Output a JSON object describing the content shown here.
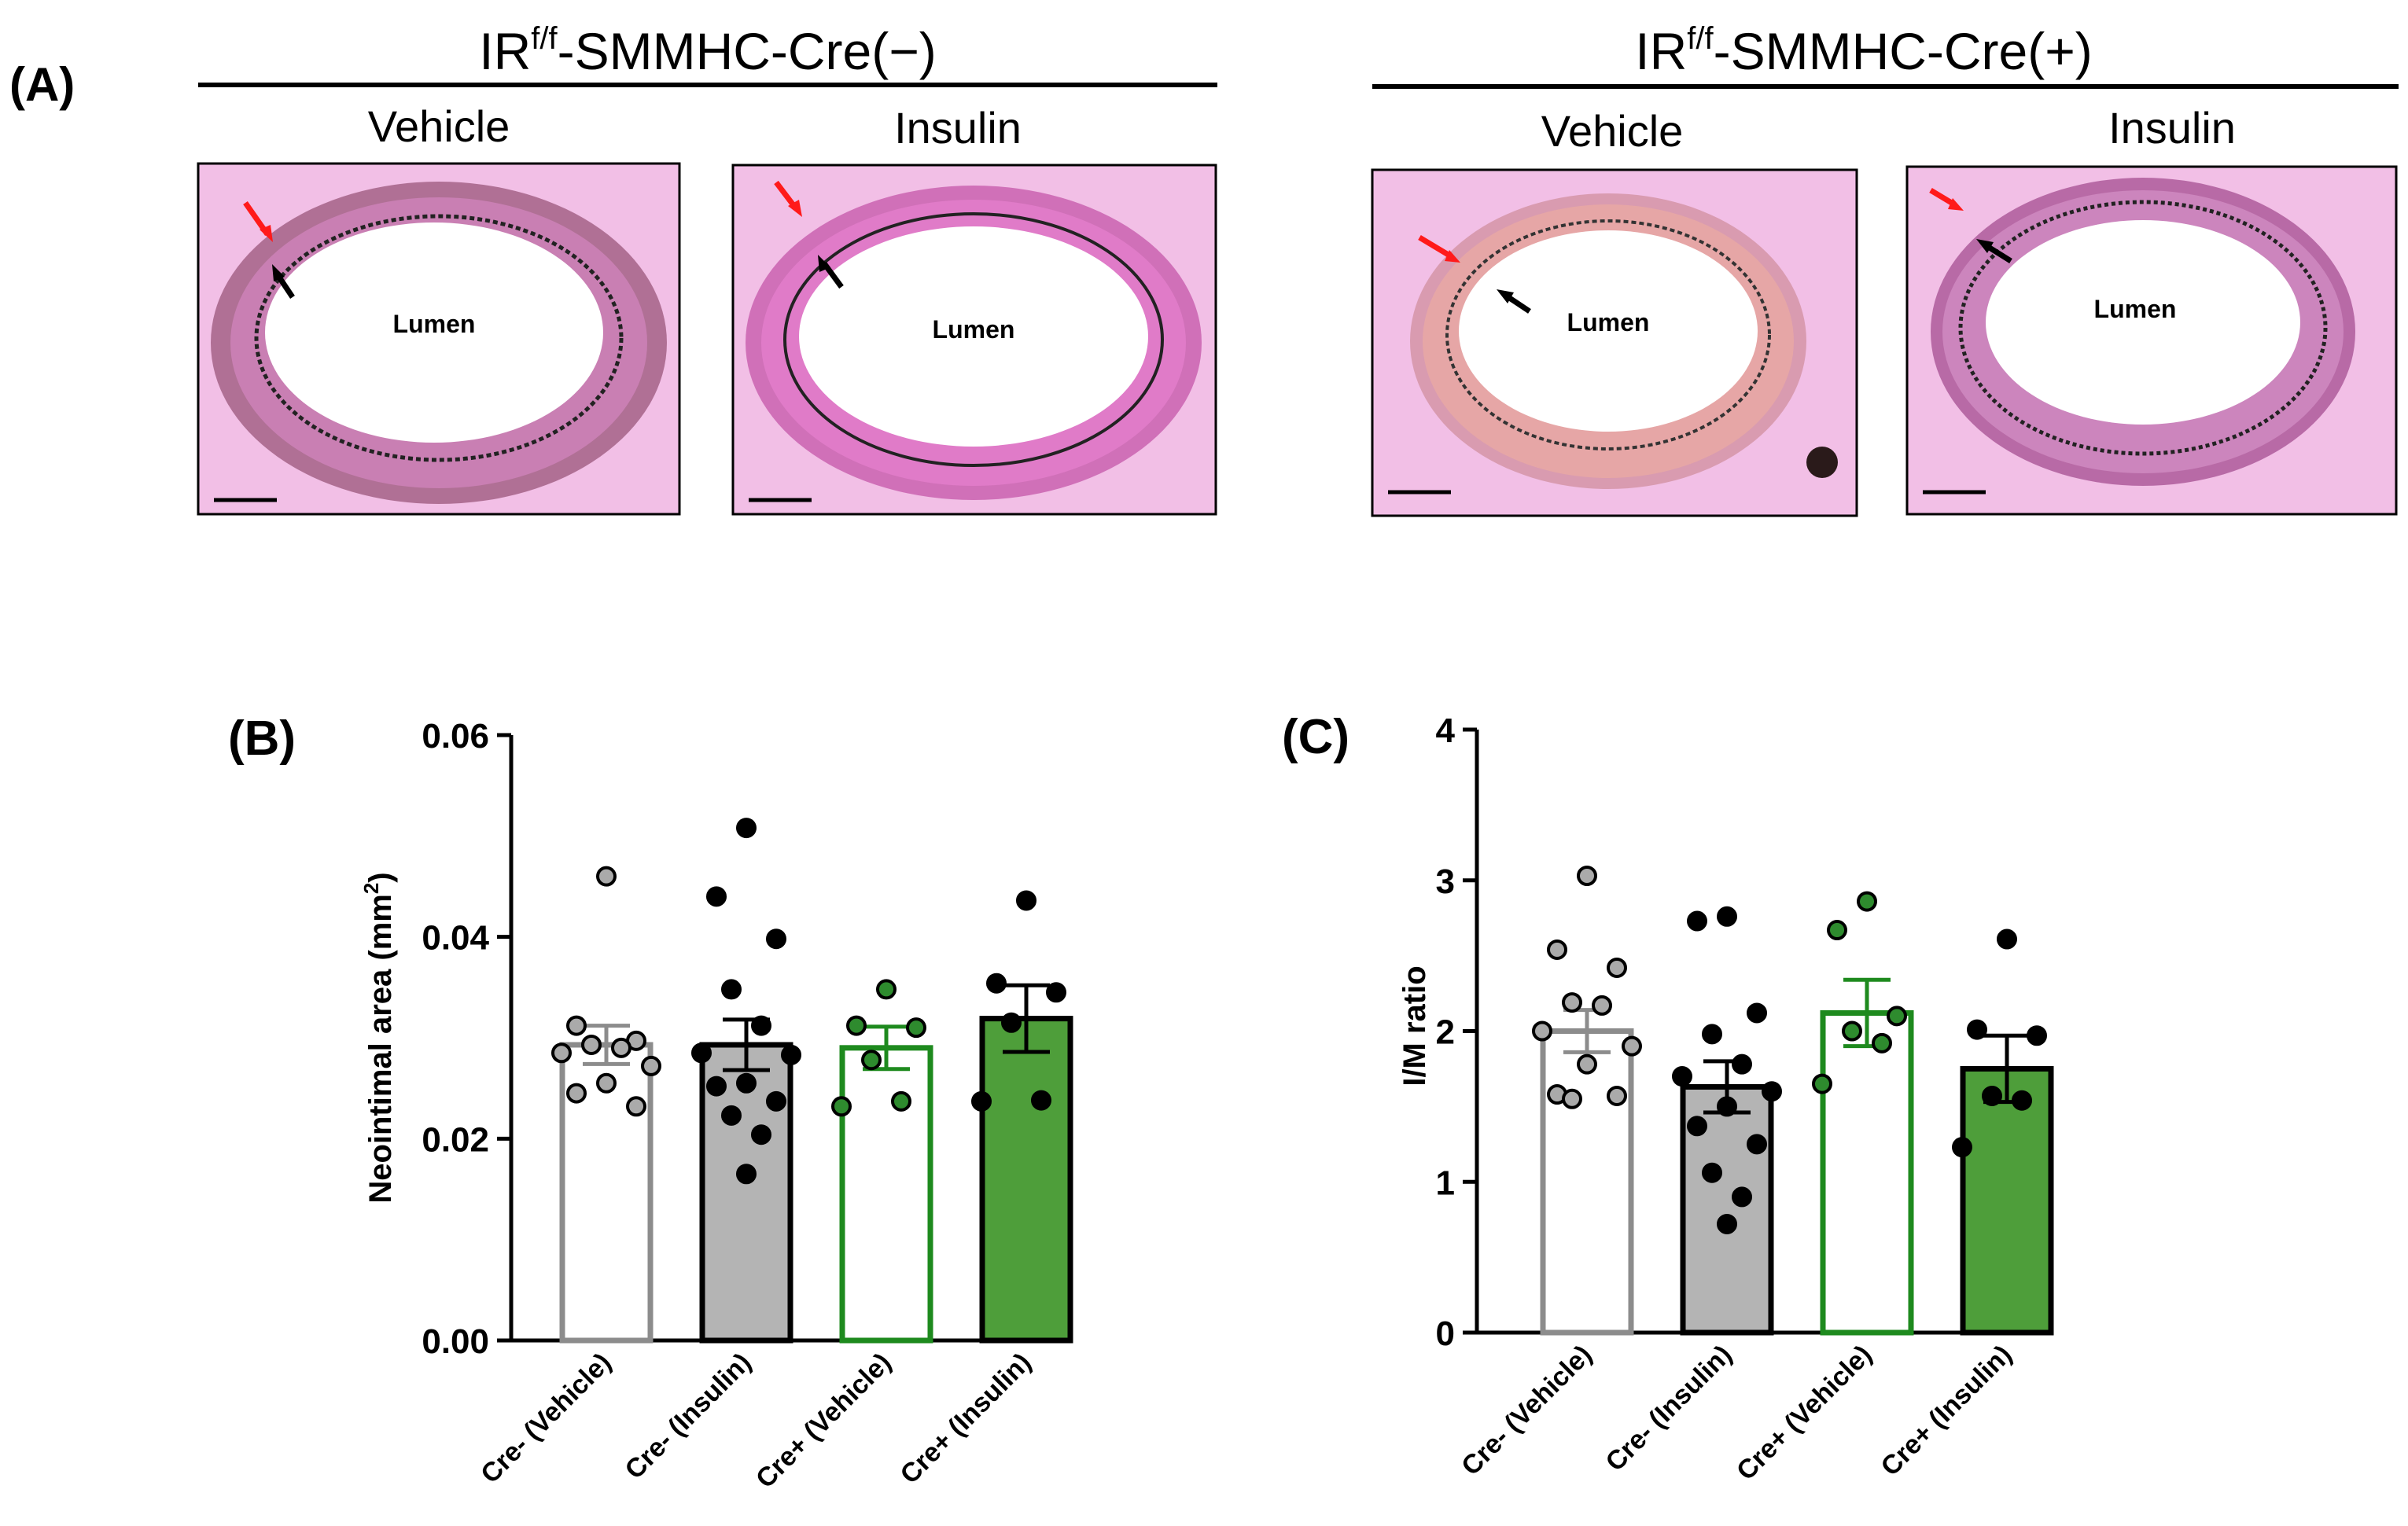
{
  "panel_a": {
    "label": "(A)",
    "groups": [
      {
        "title_prefix": "IR",
        "title_sup": "f/f",
        "title_suffix": "-SMMHC-Cre(−)",
        "images": [
          {
            "label": "Vehicle",
            "lumen_label": "Lumen",
            "media": "#c97fb3",
            "wall": "#b07095"
          },
          {
            "label": "Insulin",
            "lumen_label": "Lumen",
            "media": "#e07bc8",
            "wall": "#d070b8"
          }
        ]
      },
      {
        "title_prefix": "IR",
        "title_sup": "f/f",
        "title_suffix": "-SMMHC-Cre(+)",
        "images": [
          {
            "label": "Vehicle",
            "lumen_label": "Lumen",
            "media": "#e6a6a6",
            "wall": "#d99bb0"
          },
          {
            "label": "Insulin",
            "lumen_label": "Lumen",
            "media": "#cc85bd",
            "wall": "#b86aa6"
          }
        ]
      }
    ],
    "arrow_colors": {
      "red": "#ff1a1a",
      "black": "#000000"
    },
    "tissue_color": "#f2bfe6"
  },
  "chart_data": [
    {
      "type": "bar",
      "panel_label": "(B)",
      "ylabel_main": "Neointimal area (mm",
      "ylabel_sup": "2",
      "ylabel_tail": ")",
      "ylim": [
        0,
        0.06
      ],
      "yticks": [
        "0.00",
        "0.02",
        "0.04",
        "0.06"
      ],
      "yticks_values": [
        0,
        0.02,
        0.04,
        0.06
      ],
      "categories": [
        "Cre- (Vehicle)",
        "Cre- (Insulin)",
        "Cre+ (Vehicle)",
        "Cre+ (Insulin)"
      ],
      "values": [
        0.0293,
        0.0293,
        0.029,
        0.0319
      ],
      "sem": [
        0.0019,
        0.0025,
        0.0021,
        0.0033
      ],
      "points": [
        [
          0.046,
          0.0312,
          0.0297,
          0.0293,
          0.029,
          0.0285,
          0.0272,
          0.0255,
          0.0245,
          0.0232
        ],
        [
          0.0508,
          0.044,
          0.0398,
          0.0348,
          0.0312,
          0.0285,
          0.0283,
          0.0255,
          0.0252,
          0.0237,
          0.0223,
          0.0204,
          0.0165
        ],
        [
          0.0348,
          0.0312,
          0.031,
          0.0278,
          0.0237,
          0.0232
        ],
        [
          0.0436,
          0.0354,
          0.0345,
          0.0315,
          0.0238,
          0.0237
        ]
      ],
      "bar_fill": [
        "#ffffff",
        "#b4b4b4",
        "#ffffff",
        "#4e9e3a"
      ],
      "bar_edge": [
        "#8c8c8c",
        "#000000",
        "#1e8a1e",
        "#000000"
      ],
      "point_fill": [
        "#aaaaaa",
        "#000000",
        "#2e8b2e",
        "#000000"
      ]
    },
    {
      "type": "bar",
      "panel_label": "(C)",
      "ylabel_main": "I/M ratio",
      "ylabel_sup": "",
      "ylabel_tail": "",
      "ylim": [
        0,
        4
      ],
      "yticks": [
        "0",
        "1",
        "2",
        "3",
        "4"
      ],
      "yticks_values": [
        0,
        1,
        2,
        3,
        4
      ],
      "categories": [
        "Cre- (Vehicle)",
        "Cre- (Insulin)",
        "Cre+ (Vehicle)",
        "Cre+ (Insulin)"
      ],
      "values": [
        2.0,
        1.63,
        2.12,
        1.75
      ],
      "sem": [
        0.14,
        0.17,
        0.22,
        0.22
      ],
      "points": [
        [
          3.03,
          2.54,
          2.42,
          2.19,
          2.17,
          2.0,
          1.9,
          1.78,
          1.58,
          1.57,
          1.55
        ],
        [
          2.76,
          2.73,
          2.12,
          1.98,
          1.78,
          1.7,
          1.6,
          1.5,
          1.37,
          1.25,
          1.06,
          0.9,
          0.72
        ],
        [
          2.86,
          2.67,
          2.1,
          2.0,
          1.92,
          1.65
        ],
        [
          2.61,
          2.01,
          1.97,
          1.57,
          1.54,
          1.23
        ]
      ],
      "bar_fill": [
        "#ffffff",
        "#b4b4b4",
        "#ffffff",
        "#4e9e3a"
      ],
      "bar_edge": [
        "#8c8c8c",
        "#000000",
        "#1e8a1e",
        "#000000"
      ],
      "point_fill": [
        "#aaaaaa",
        "#000000",
        "#2e8b2e",
        "#000000"
      ]
    }
  ]
}
